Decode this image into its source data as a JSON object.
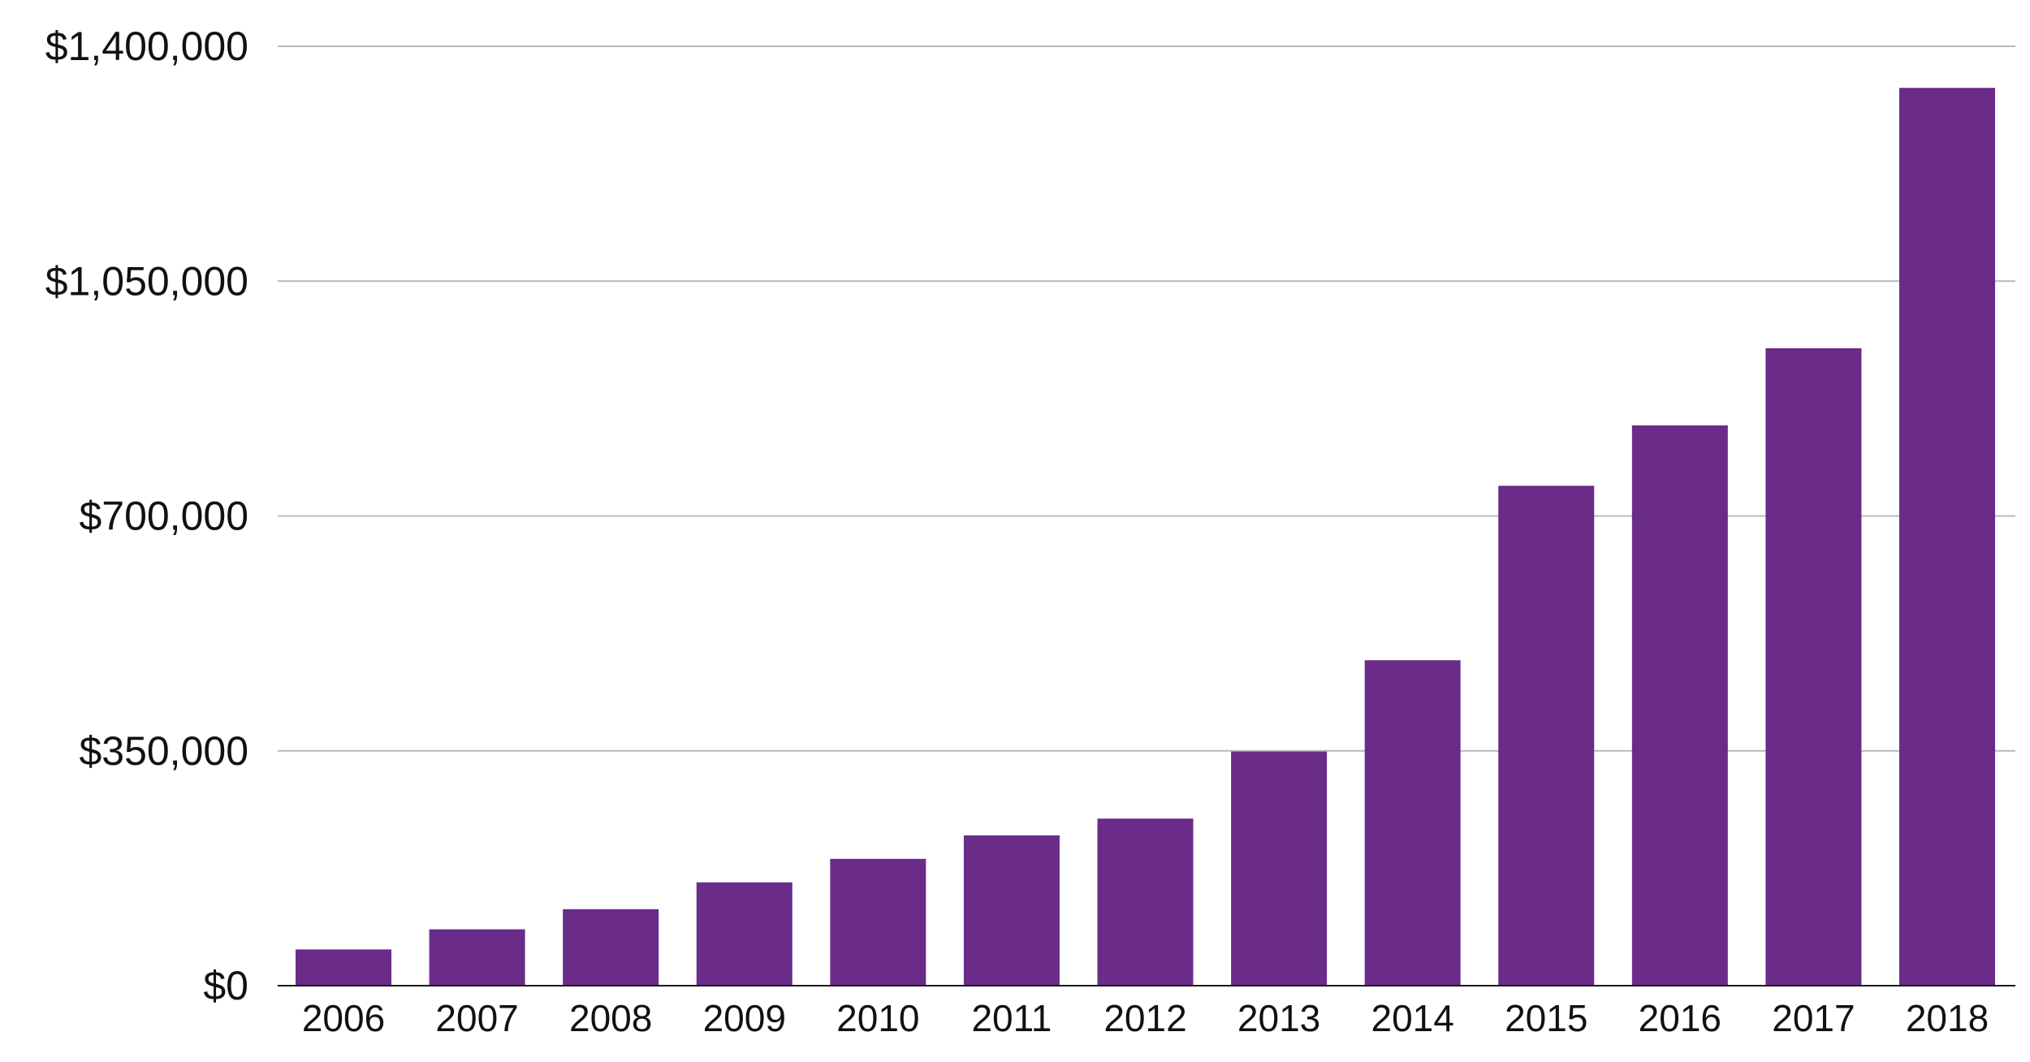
{
  "chart_data": {
    "type": "bar",
    "title": "",
    "xlabel": "",
    "ylabel": "",
    "categories": [
      "2006",
      "2007",
      "2008",
      "2009",
      "2010",
      "2011",
      "2012",
      "2013",
      "2014",
      "2015",
      "2016",
      "2017",
      "2018"
    ],
    "values": [
      54000,
      84000,
      114000,
      154000,
      189000,
      224000,
      249000,
      349000,
      485000,
      745000,
      835000,
      950000,
      1338000
    ],
    "ylim": [
      0,
      1400000
    ],
    "yticks": [
      0,
      350000,
      700000,
      1050000,
      1400000
    ],
    "ytick_labels": [
      "$0",
      "$350,000",
      "$700,000",
      "$1,050,000",
      "$1,400,000"
    ],
    "grid": true,
    "legend": "none",
    "colors": {
      "bar": "#6a2c88",
      "grid": "#b9b9b9",
      "axis": "#1a1a1a",
      "text": "#111111"
    }
  }
}
